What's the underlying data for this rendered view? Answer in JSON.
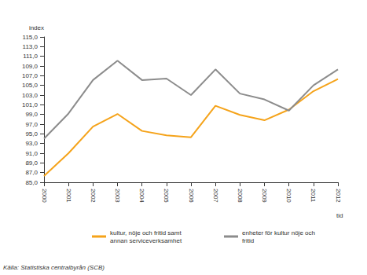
{
  "chart_data": {
    "type": "line",
    "y_label": "index",
    "x_label": "tid",
    "source": "Källa: Statistiska centralbyrån (SCB)",
    "categories": [
      "2000",
      "2001",
      "2002",
      "2003",
      "2004",
      "2005",
      "2006",
      "2007",
      "2008",
      "2009",
      "2010",
      "2011",
      "2012"
    ],
    "series": [
      {
        "name": "kultur, nöje och fritid samt annan serviceverksamhet",
        "color": "#f5a31a",
        "values": [
          86.3,
          91.0,
          96.5,
          99.1,
          95.6,
          94.7,
          94.3,
          100.8,
          98.9,
          97.8,
          100.0,
          103.8,
          106.3
        ]
      },
      {
        "name": "enheter för kultur nöje och fritid",
        "color": "#8c8c8c",
        "values": [
          94.0,
          99.2,
          106.1,
          110.1,
          106.1,
          106.4,
          103.0,
          108.3,
          103.3,
          102.1,
          99.8,
          105.0,
          108.3
        ]
      }
    ],
    "ylim": [
      85,
      115
    ],
    "yticks": [
      {
        "value": 85,
        "label": "85,0"
      },
      {
        "value": 87,
        "label": "87,0"
      },
      {
        "value": 89,
        "label": "89,0"
      },
      {
        "value": 91,
        "label": "91,0"
      },
      {
        "value": 93,
        "label": "93,0"
      },
      {
        "value": 95,
        "label": "95,0"
      },
      {
        "value": 97,
        "label": "97,0"
      },
      {
        "value": 99,
        "label": "99,0"
      },
      {
        "value": 101,
        "label": "101,0"
      },
      {
        "value": 103,
        "label": "103,0"
      },
      {
        "value": 105,
        "label": "105,0"
      },
      {
        "value": 107,
        "label": "107,0"
      },
      {
        "value": 109,
        "label": "109,0"
      },
      {
        "value": 111,
        "label": "111,0"
      },
      {
        "value": 113,
        "label": "113,0"
      },
      {
        "value": 115,
        "label": "115,0"
      }
    ],
    "grid": false,
    "legend": "bottom"
  }
}
